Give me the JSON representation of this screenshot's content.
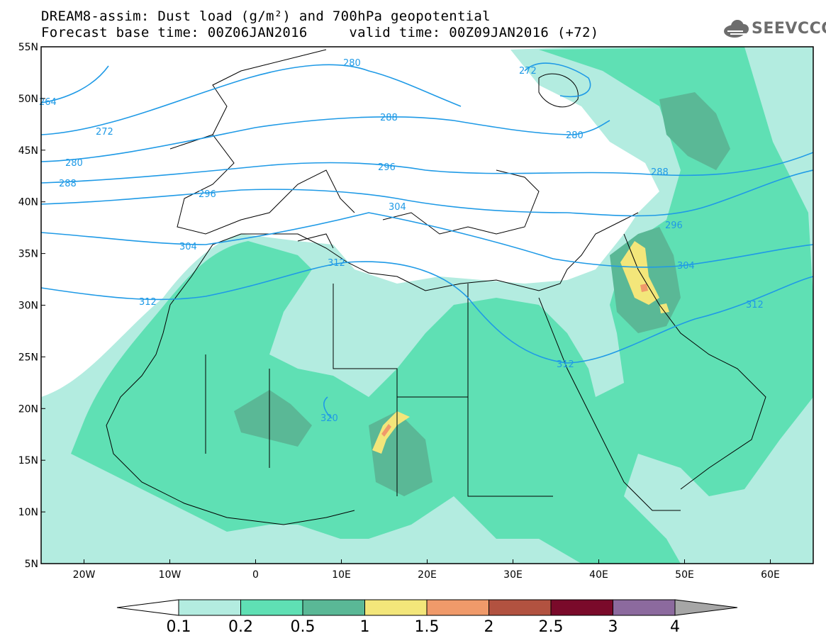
{
  "header": {
    "title_line1": "DREAM8-assim: Dust load (g/m²) and 700hPa geopotential",
    "title_line2": "Forecast base time: 00Z06JAN2016     valid time: 00Z09JAN2016 (+72)"
  },
  "logo": {
    "text": "SEEVCCC",
    "icon": "cloud-icon"
  },
  "map": {
    "lon_range": [
      -25,
      65
    ],
    "lat_range": [
      5,
      55
    ],
    "lat_ticks": [
      "55N",
      "50N",
      "45N",
      "40N",
      "35N",
      "30N",
      "25N",
      "20N",
      "15N",
      "10N",
      "5N"
    ],
    "lon_ticks": [
      "20W",
      "10W",
      "0",
      "10E",
      "20E",
      "30E",
      "40E",
      "50E",
      "60E"
    ],
    "contour_labels": [
      "264",
      "272",
      "280",
      "288",
      "296",
      "304",
      "312",
      "272",
      "280",
      "288",
      "296",
      "304",
      "312",
      "280",
      "288",
      "296",
      "304",
      "312",
      "320",
      "288",
      "296",
      "304",
      "312"
    ],
    "contour_color": "#1f9ae6"
  },
  "colorbar": {
    "levels": [
      "0.1",
      "0.2",
      "0.5",
      "1",
      "1.5",
      "2",
      "2.5",
      "3",
      "4"
    ],
    "colors": [
      "#b3ece0",
      "#5fe0b4",
      "#5ab896",
      "#f3e67a",
      "#f09a6a",
      "#b25240",
      "#7a0a2a",
      "#8c6a9e",
      "#a6a6a6"
    ]
  }
}
